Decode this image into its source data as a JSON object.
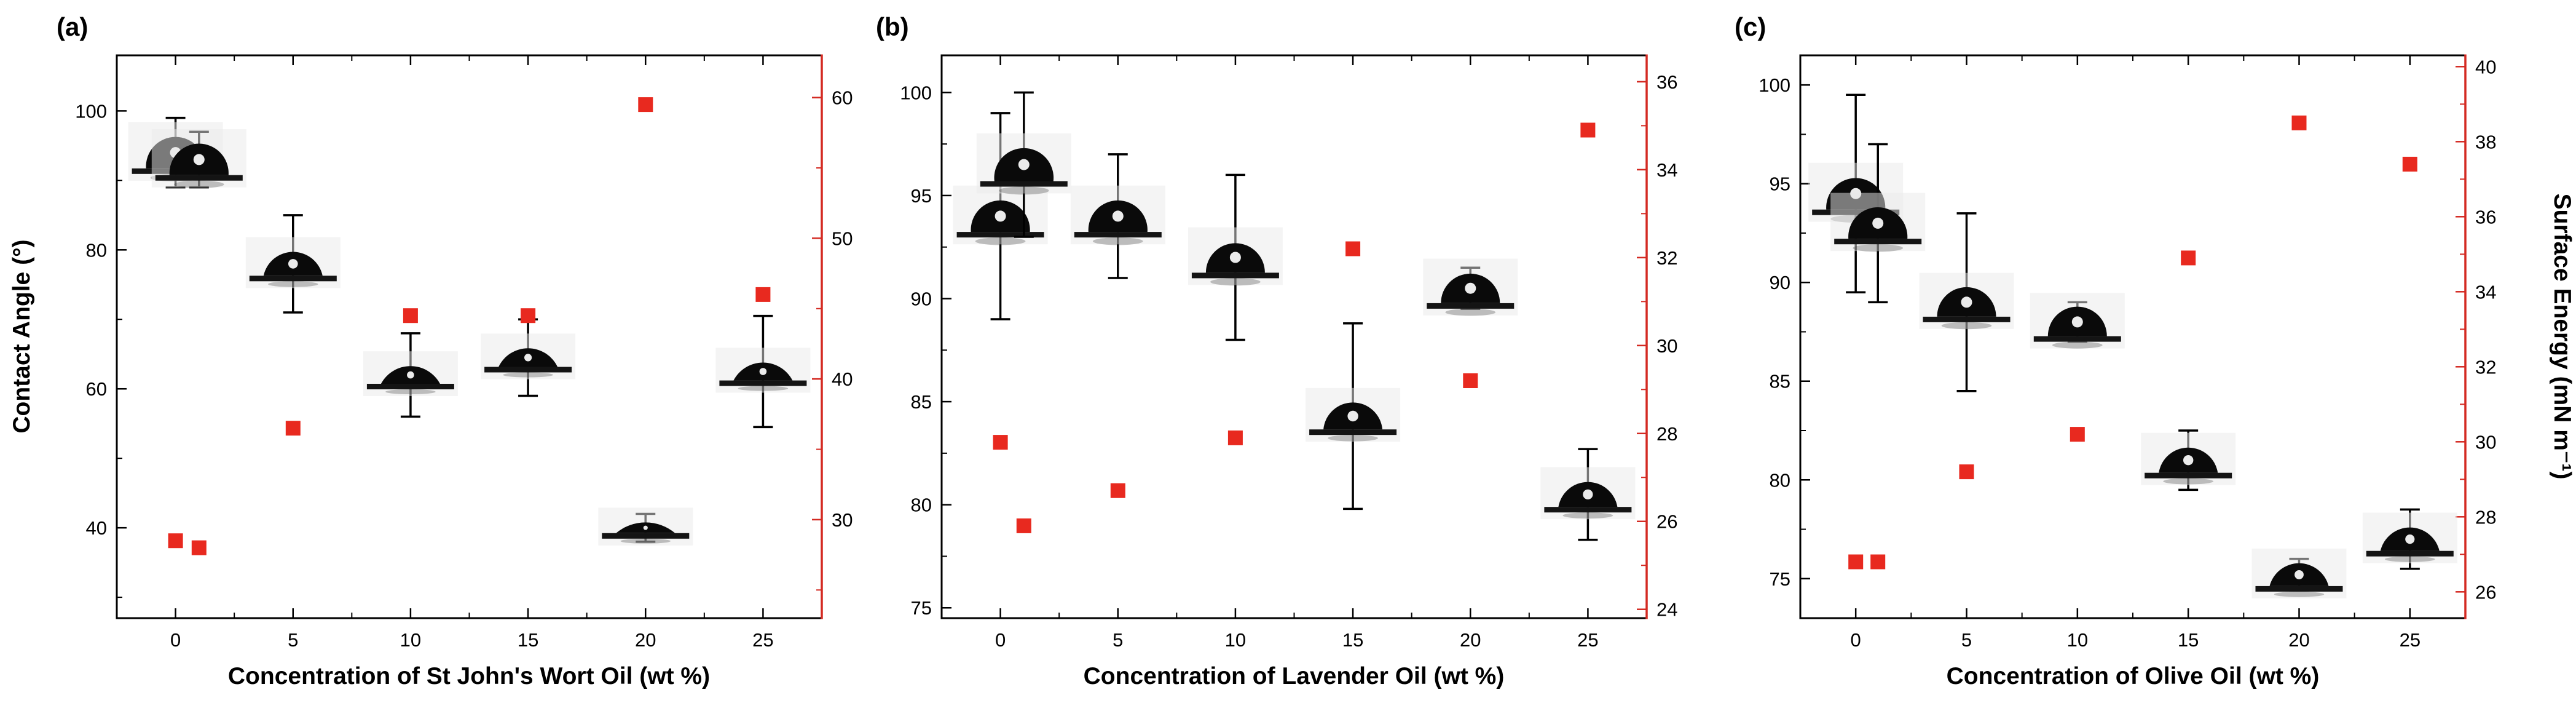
{
  "shared": {
    "left_axis_title": "Contact Angle (°)",
    "right_axis_title": "Surface Energy (mN m⁻¹)",
    "colors": {
      "black": "#000000",
      "marker_red": "#e8291f",
      "axis_red": "#d42a22",
      "background": "#ffffff"
    }
  },
  "chart_data": [
    {
      "panel_label": "(a)",
      "type": "scatter",
      "xlabel": "Concentration of St John's Wort Oil (wt %)",
      "ylabel_left": "Contact Angle (°)",
      "ylabel_right": "Surface Energy (mN m⁻¹)",
      "grid": false,
      "legend": false,
      "xlim": [
        -2.5,
        27.5
      ],
      "x_ticks": [
        0,
        5,
        10,
        15,
        20,
        25
      ],
      "ylim_left": [
        27,
        108
      ],
      "left_ticks": [
        40,
        60,
        80,
        100
      ],
      "ylim_right": [
        23,
        63
      ],
      "right_ticks": [
        30,
        40,
        50,
        60
      ],
      "series": [
        {
          "name": "Contact Angle",
          "axis": "left",
          "marker": "droplet-photo",
          "x": [
            0,
            1,
            5,
            10,
            15,
            20,
            25
          ],
          "y": [
            94,
            93,
            78,
            62,
            64.5,
            40,
            62.5
          ],
          "yerr": [
            5,
            4,
            7,
            6,
            5.5,
            2,
            8
          ]
        },
        {
          "name": "Surface Energy",
          "axis": "right",
          "marker": "red-square",
          "x": [
            0,
            1,
            5,
            10,
            15,
            20,
            25
          ],
          "y": [
            28.5,
            28,
            36.5,
            44.5,
            44.5,
            59.5,
            46
          ]
        }
      ]
    },
    {
      "panel_label": "(b)",
      "type": "scatter",
      "xlabel": "Concentration of Lavender Oil (wt %)",
      "ylabel_left": "Contact Angle (°)",
      "ylabel_right": "Surface Energy (mN m⁻¹)",
      "grid": false,
      "legend": false,
      "xlim": [
        -2.5,
        27.5
      ],
      "x_ticks": [
        0,
        5,
        10,
        15,
        20,
        25
      ],
      "ylim_left": [
        74.5,
        101.8
      ],
      "left_ticks": [
        75,
        80,
        85,
        90,
        95,
        100
      ],
      "ylim_right": [
        23.8,
        36.6
      ],
      "right_ticks": [
        24,
        26,
        28,
        30,
        32,
        34,
        36
      ],
      "series": [
        {
          "name": "Contact Angle",
          "axis": "left",
          "marker": "droplet-photo",
          "x": [
            0,
            1,
            5,
            10,
            15,
            20,
            25
          ],
          "y": [
            94,
            96.5,
            94,
            92,
            84.3,
            90.5,
            80.5
          ],
          "yerr": [
            5,
            3.5,
            3,
            4,
            4.5,
            1,
            2.2
          ]
        },
        {
          "name": "Surface Energy",
          "axis": "right",
          "marker": "red-square",
          "x": [
            0,
            1,
            5,
            10,
            15,
            20,
            25
          ],
          "y": [
            27.8,
            25.9,
            26.7,
            27.9,
            32.2,
            29.2,
            34.9
          ]
        }
      ]
    },
    {
      "panel_label": "(c)",
      "type": "scatter",
      "xlabel": "Concentration of Olive Oil (wt %)",
      "ylabel_left": "Contact Angle (°)",
      "ylabel_right": "Surface Energy (mN m⁻¹)",
      "grid": false,
      "legend": false,
      "xlim": [
        -2.5,
        27.5
      ],
      "x_ticks": [
        0,
        5,
        10,
        15,
        20,
        25
      ],
      "ylim_left": [
        73,
        101.5
      ],
      "left_ticks": [
        75,
        80,
        85,
        90,
        95,
        100
      ],
      "ylim_right": [
        25.3,
        40.3
      ],
      "right_ticks": [
        26,
        28,
        30,
        32,
        34,
        36,
        38,
        40
      ],
      "series": [
        {
          "name": "Contact Angle",
          "axis": "left",
          "marker": "droplet-photo",
          "x": [
            0,
            1,
            5,
            10,
            15,
            20,
            25
          ],
          "y": [
            94.5,
            93,
            89,
            88,
            81,
            75.2,
            77
          ],
          "yerr": [
            5,
            4,
            4.5,
            1,
            1.5,
            0.8,
            1.5
          ]
        },
        {
          "name": "Surface Energy",
          "axis": "right",
          "marker": "red-square",
          "x": [
            0,
            1,
            5,
            10,
            15,
            20,
            25
          ],
          "y": [
            26.8,
            26.8,
            29.2,
            30.2,
            34.9,
            38.5,
            37.4
          ]
        }
      ]
    }
  ]
}
